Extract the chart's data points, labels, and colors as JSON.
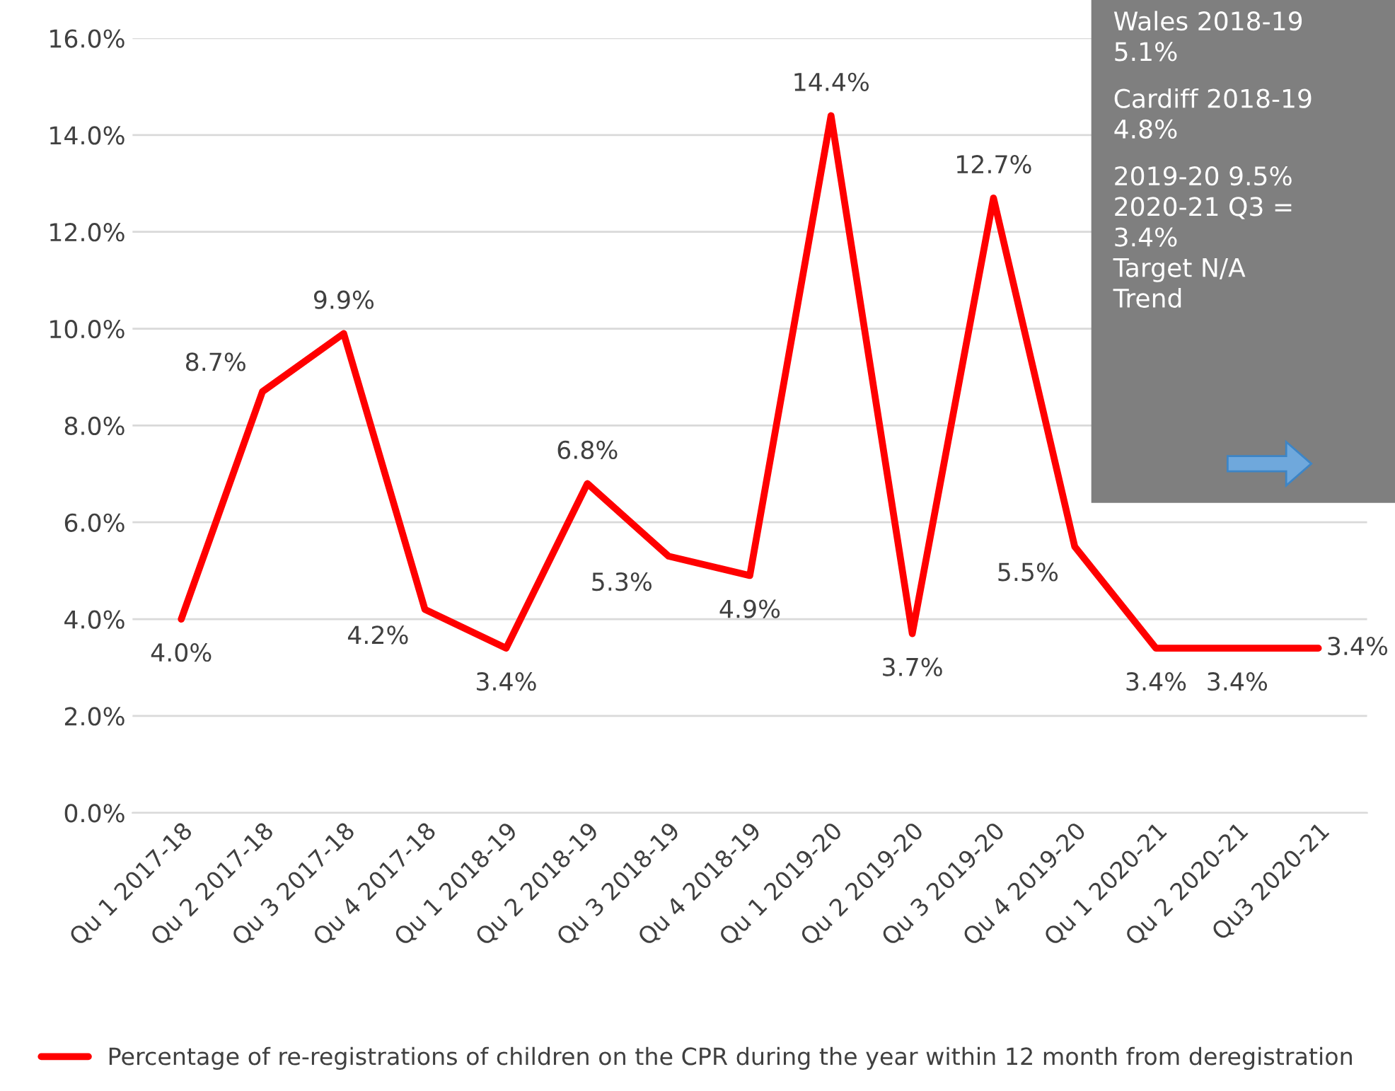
{
  "chart_data": {
    "type": "line",
    "categories": [
      "Qu 1 2017-18",
      "Qu 2 2017-18",
      "Qu 3 2017-18",
      "Qu 4 2017-18",
      "Qu 1 2018-19",
      "Qu 2 2018-19",
      "Qu 3 2018-19",
      "Qu 4 2018-19",
      "Qu 1 2019-20",
      "Qu 2 2019-20",
      "Qu 3 2019-20",
      "Qu 4 2019-20",
      "Qu 1 2020-21",
      "Qu 2 2020-21",
      "Qu3 2020-21"
    ],
    "series": [
      {
        "name": "Percentage of re-registrations of children on the CPR during the year within 12 month from deregistration",
        "color": "#ff0000",
        "values": [
          4.0,
          8.7,
          9.9,
          4.2,
          3.4,
          6.8,
          5.3,
          4.9,
          14.4,
          3.7,
          12.7,
          5.5,
          3.4,
          3.4,
          3.4
        ],
        "value_labels": [
          "4.0%",
          "8.7%",
          "9.9%",
          "4.2%",
          "3.4%",
          "6.8%",
          "5.3%",
          "4.9%",
          "14.4%",
          "3.7%",
          "12.7%",
          "5.5%",
          "3.4%",
          "3.4%",
          "3.4%"
        ]
      }
    ],
    "ylim": [
      0,
      16
    ],
    "yticks": [
      {
        "value": 0,
        "label": "0.0%"
      },
      {
        "value": 2,
        "label": "2.0%"
      },
      {
        "value": 4,
        "label": "4.0%"
      },
      {
        "value": 6,
        "label": "6.0%"
      },
      {
        "value": 8,
        "label": "8.0%"
      },
      {
        "value": 10,
        "label": "10.0%"
      },
      {
        "value": 12,
        "label": "12.0%"
      },
      {
        "value": 14,
        "label": "14.0%"
      },
      {
        "value": 16,
        "label": "16.0%"
      }
    ],
    "grid": "y",
    "legend": "bottom",
    "marker": "none",
    "line_style": "solid",
    "annotations": [
      "Wales 2018-19\n5.1%",
      "Cardiff 2018-19\n4.8%",
      "2019-20 9.5%\n2020-21 Q3 =\n3.4%\nTarget N/A\nTrend"
    ]
  }
}
